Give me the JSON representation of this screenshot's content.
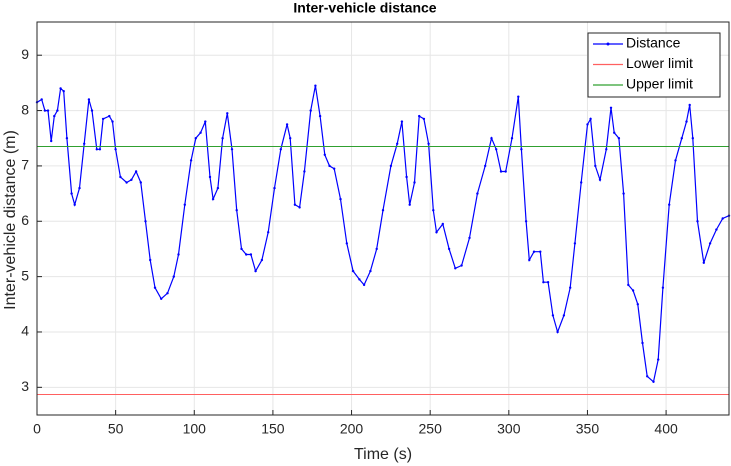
{
  "chart_data": {
    "type": "line",
    "title": "Inter-vehicle distance",
    "xlabel": "Time (s)",
    "ylabel": "Inter-vehicle distance (m)",
    "xlim": [
      0,
      440
    ],
    "ylim": [
      2.5,
      9.6
    ],
    "xticks": [
      0,
      50,
      100,
      150,
      200,
      250,
      300,
      350,
      400
    ],
    "yticks": [
      3,
      4,
      5,
      6,
      7,
      8,
      9
    ],
    "grid": true,
    "legend": "top-right",
    "x": [
      0,
      3,
      5,
      7,
      9,
      11,
      13,
      15,
      17,
      19,
      22,
      24,
      27,
      30,
      33,
      35,
      38,
      40,
      42,
      46,
      48,
      50,
      53,
      57,
      60,
      63,
      66,
      69,
      72,
      75,
      79,
      83,
      87,
      90,
      94,
      98,
      101,
      104,
      107,
      110,
      112,
      115,
      118,
      121,
      124,
      127,
      130,
      133,
      136,
      139,
      143,
      147,
      151,
      155,
      159,
      161,
      164,
      167,
      170,
      174,
      177,
      180,
      183,
      186,
      189,
      193,
      197,
      201,
      205,
      208,
      212,
      216,
      220,
      225,
      229,
      232,
      235,
      237,
      240,
      243,
      246,
      249,
      252,
      254,
      258,
      262,
      266,
      270,
      275,
      280,
      285,
      289,
      292,
      295,
      298,
      302,
      306,
      308,
      311,
      313,
      316,
      320,
      322,
      325,
      328,
      331,
      335,
      339,
      342,
      346,
      350,
      352,
      355,
      358,
      362,
      365,
      367,
      370,
      373,
      376,
      379,
      382,
      385,
      388,
      392,
      395,
      398,
      402,
      406,
      410,
      413,
      415,
      417,
      420,
      424,
      428,
      432,
      436,
      440
    ],
    "series": [
      {
        "name": "Distance",
        "color": "#0000ff",
        "values": [
          8.15,
          8.2,
          8.0,
          8.0,
          7.45,
          7.9,
          8.0,
          8.4,
          8.35,
          7.5,
          6.5,
          6.3,
          6.6,
          7.4,
          8.2,
          8.0,
          7.3,
          7.3,
          7.85,
          7.9,
          7.8,
          7.3,
          6.8,
          6.7,
          6.75,
          6.9,
          6.7,
          6.0,
          5.3,
          4.8,
          4.6,
          4.7,
          5.0,
          5.4,
          6.3,
          7.1,
          7.5,
          7.6,
          7.8,
          6.8,
          6.4,
          6.6,
          7.5,
          7.95,
          7.3,
          6.2,
          5.5,
          5.4,
          5.4,
          5.1,
          5.3,
          5.8,
          6.6,
          7.3,
          7.75,
          7.5,
          6.3,
          6.25,
          6.9,
          8.0,
          8.45,
          7.9,
          7.2,
          7.0,
          6.95,
          6.4,
          5.6,
          5.1,
          4.95,
          4.85,
          5.1,
          5.5,
          6.2,
          7.0,
          7.4,
          7.8,
          6.8,
          6.3,
          6.7,
          7.9,
          7.85,
          7.4,
          6.2,
          5.8,
          5.95,
          5.5,
          5.15,
          5.2,
          5.7,
          6.5,
          7.0,
          7.5,
          7.3,
          6.9,
          6.9,
          7.5,
          8.25,
          7.3,
          6.0,
          5.3,
          5.45,
          5.45,
          4.9,
          4.9,
          4.3,
          4.0,
          4.3,
          4.8,
          5.6,
          6.7,
          7.75,
          7.85,
          7.0,
          6.75,
          7.3,
          8.05,
          7.6,
          7.5,
          6.5,
          4.85,
          4.75,
          4.5,
          3.8,
          3.2,
          3.1,
          3.5,
          4.8,
          6.3,
          7.1,
          7.5,
          7.8,
          8.1,
          7.5,
          6.0,
          5.25,
          5.6,
          5.85,
          6.05,
          6.1
        ]
      },
      {
        "name": "Lower limit",
        "color": "#ff6060",
        "value": 2.87
      },
      {
        "name": "Upper limit",
        "color": "#30a030",
        "value": 7.35
      }
    ]
  }
}
